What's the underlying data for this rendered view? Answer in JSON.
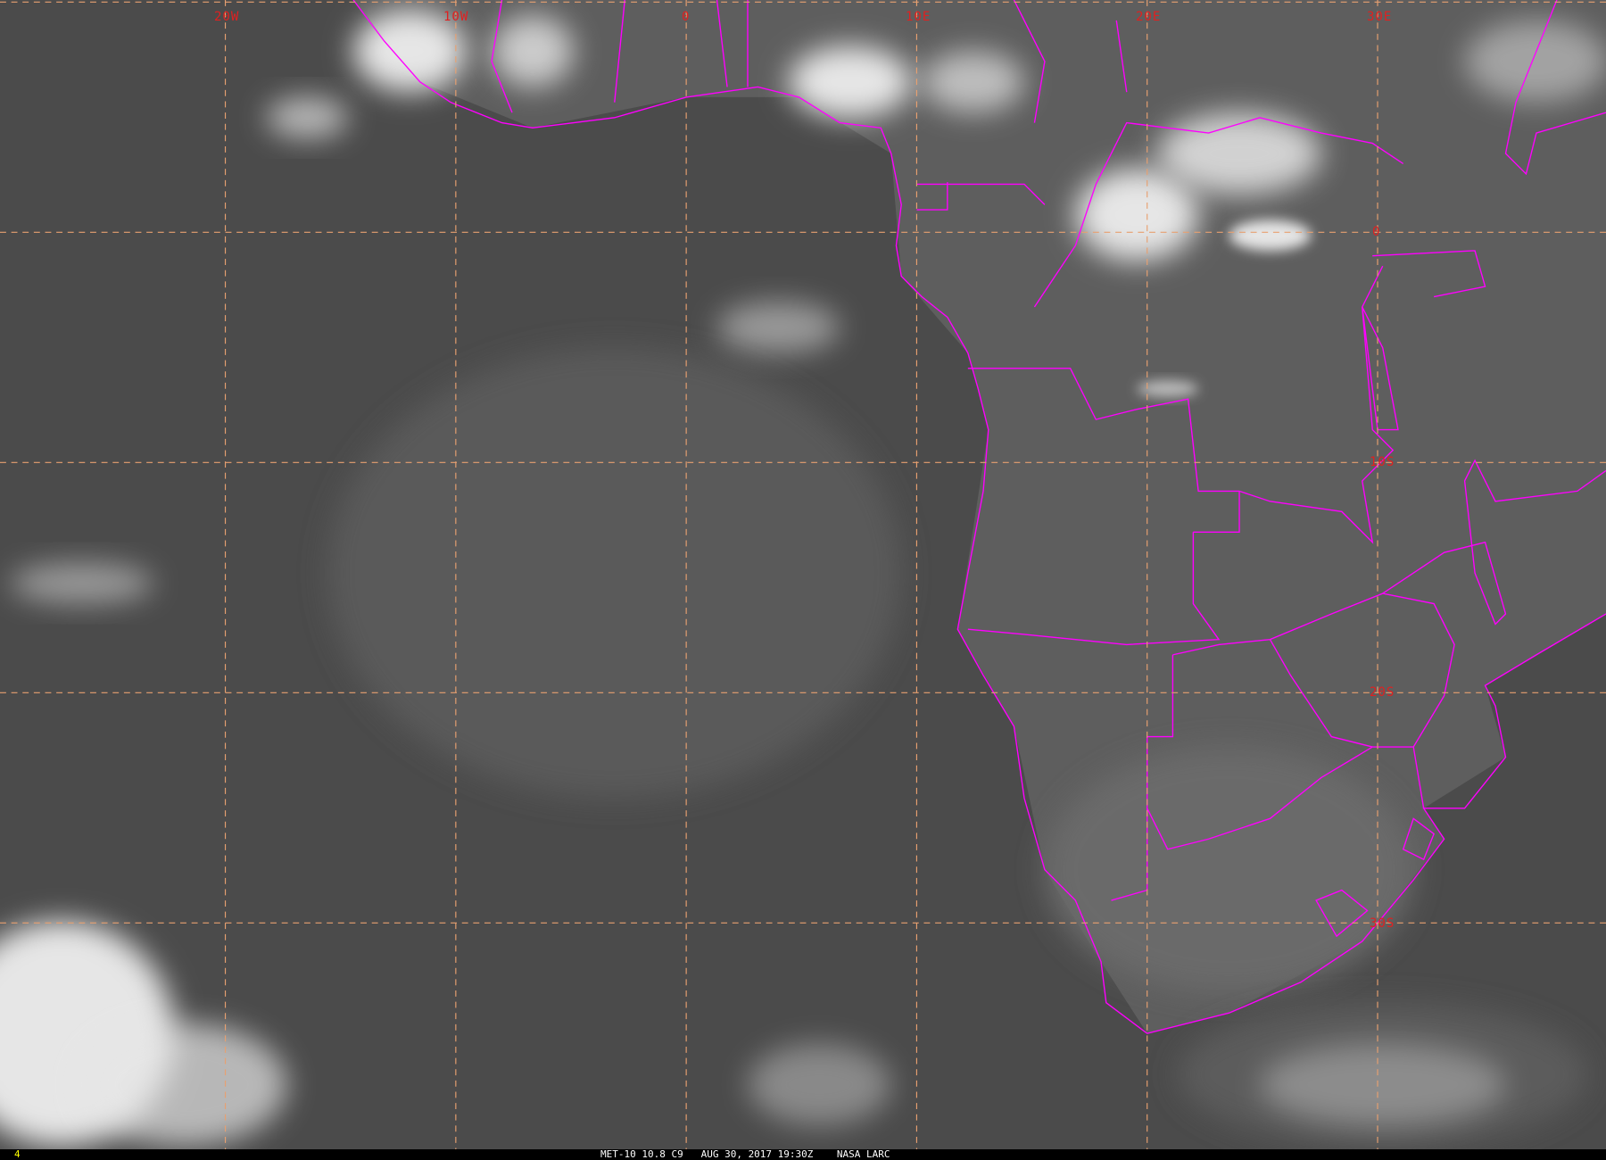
{
  "image": {
    "type": "infrared satellite image",
    "frame_number": "4",
    "caption": "MET-10 10.8 C9   AUG 30, 2017 19:30Z    NASA LARC"
  },
  "grid": {
    "longitude_labels": [
      "20W",
      "10W",
      "0",
      "10E",
      "20E",
      "30E"
    ],
    "latitude_labels": [
      "0",
      "10S",
      "20S",
      "30S"
    ],
    "gridline_color": "#e8a070",
    "label_color": "#e02020",
    "border_color": "#ff00ff"
  }
}
